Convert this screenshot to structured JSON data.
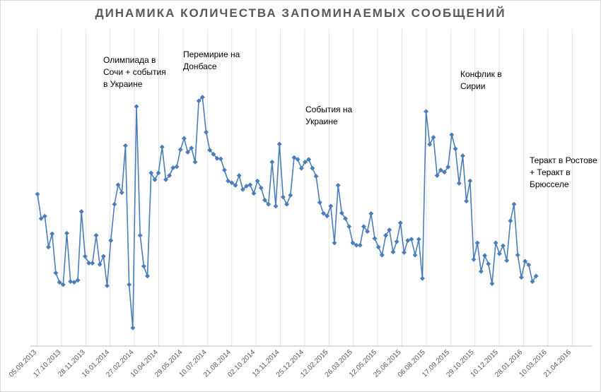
{
  "chart_data": {
    "type": "line",
    "title": "ДИНАМИКА КОЛИЧЕСТВА ЗАПОМИНАЕМЫХ СООБЩЕНИЙ",
    "xlabel": "",
    "ylabel": "",
    "grid": "vertical",
    "legend": "none",
    "ylim": [
      0,
      100
    ],
    "x_ticks": [
      "05.09.2013",
      "17.10.2013",
      "28.11.2013",
      "16.01.2014",
      "27.02.2014",
      "10.04.2014",
      "29.05.2014",
      "10.07.2014",
      "21.08.2014",
      "02.10.2014",
      "13.11.2014",
      "25.12.2014",
      "12.02.2015",
      "26.03.2015",
      "12.05.2015",
      "25.06.2015",
      "06.08.2015",
      "17.09.2015",
      "29.10.2015",
      "10.12.2015",
      "28.01.2016",
      "10.03.2016",
      "21.04.2016"
    ],
    "series": [
      {
        "color": "#4a7ebb",
        "values": [
          51.8,
          42.4,
          43.3,
          31.4,
          36.5,
          21.4,
          17.8,
          16.9,
          36.7,
          18.1,
          17.8,
          18.6,
          45.1,
          27.8,
          25.2,
          25.2,
          35.9,
          24.7,
          27.8,
          16.5,
          33.9,
          47.9,
          55.4,
          52.4,
          70.5,
          16.9,
          0.2,
          85.6,
          35.9,
          24.0,
          20.2,
          60.0,
          57.4,
          60.0,
          70.0,
          57.4,
          59.0,
          62.0,
          62.4,
          69.0,
          73.3,
          68.0,
          69.6,
          64.2,
          87.8,
          89.2,
          75.7,
          68.8,
          67.2,
          65.6,
          65.4,
          61.1,
          56.9,
          56.2,
          55.2,
          59.0,
          53.6,
          54.9,
          55.4,
          52.1,
          56.9,
          54.2,
          49.5,
          47.9,
          64.2,
          47.2,
          71.1,
          50.7,
          47.9,
          51.4,
          65.9,
          65.2,
          61.8,
          64.2,
          65.2,
          61.8,
          58.7,
          48.6,
          44.4,
          43.4,
          47.2,
          33.0,
          55.2,
          44.5,
          42.4,
          39.3,
          33.0,
          32.1,
          32.1,
          39.3,
          37.4,
          44.3,
          34.7,
          31.4,
          28.3,
          35.9,
          38.0,
          29.5,
          33.5,
          40.7,
          29.3,
          33.9,
          34.4,
          28.3,
          34.4,
          19.3,
          83.7,
          71.0,
          73.7,
          59.0,
          61.1,
          60.3,
          62.3,
          74.7,
          69.3,
          56.0,
          66.6,
          49.1,
          56.9,
          26.6,
          33.0,
          22.0,
          28.1,
          24.9,
          17.3,
          33.0,
          28.8,
          31.9,
          26.2,
          41.5,
          47.9,
          28.3,
          19.7,
          25.9,
          24.5,
          18.1,
          20.2
        ]
      }
    ],
    "annotations": [
      {
        "lines": [
          "Олимпиада в",
          "Сочи + события",
          "в Украине"
        ]
      },
      {
        "lines": [
          "Перемирие на",
          "Донбасе"
        ]
      },
      {
        "lines": [
          "События на",
          "Украине"
        ]
      },
      {
        "lines": [
          "Конфлик в",
          "Сирии"
        ]
      },
      {
        "lines": [
          "Теракт в Ростове",
          "+ Теракт в",
          "Брюсселе"
        ]
      }
    ]
  }
}
